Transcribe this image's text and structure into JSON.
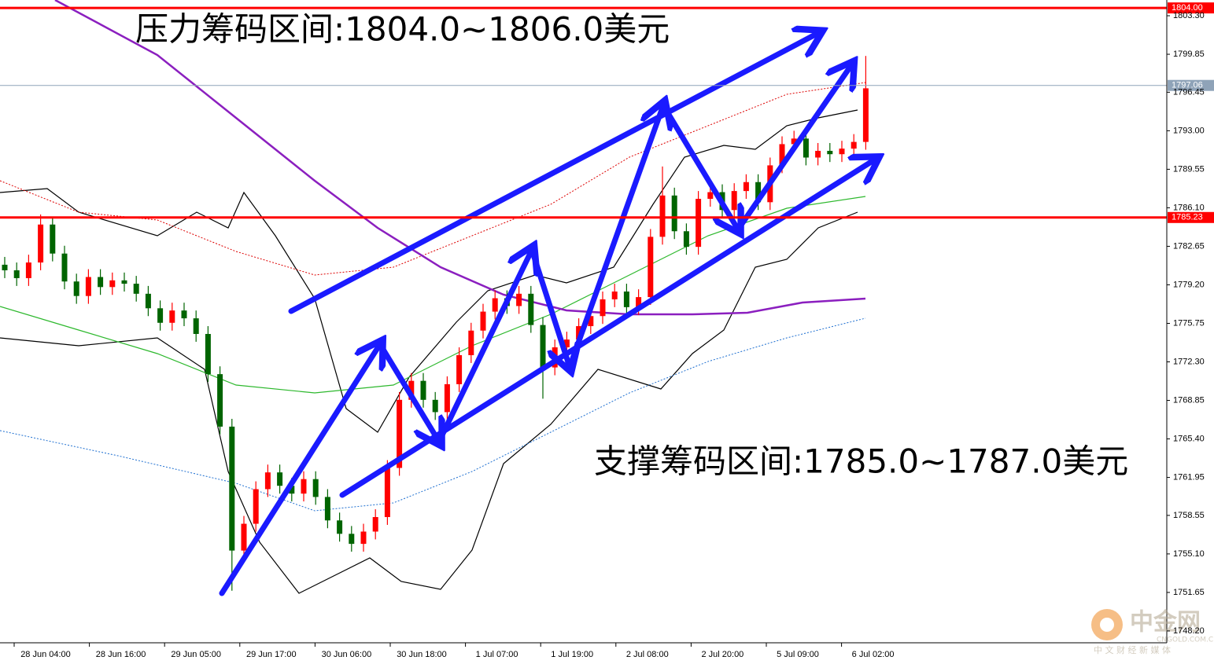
{
  "chart_data": {
    "type": "candlestick",
    "annotations": [
      "压力筹码区间:1804.0~1806.0美元",
      "支撑筹码区间:1785.0~1787.0美元"
    ],
    "categories": [
      "28 Jun 04:00",
      "28 Jun 16:00",
      "29 Jun 05:00",
      "29 Jun 17:00",
      "30 Jun 06:00",
      "30 Jun 18:00",
      "1 Jul 07:00",
      "1 Jul 19:00",
      "2 Jul 08:00",
      "2 Jul 20:00",
      "5 Jul 09:00",
      "6 Jul 02:00"
    ],
    "up_color": "#ff0000",
    "down_color": "#006400",
    "open": [
      1781.0,
      1780.5,
      1779.8,
      1781.2,
      1784.6,
      1782.0,
      1779.5,
      1778.2,
      1779.9,
      1779.0,
      1779.6,
      1779.3,
      1778.4,
      1777.1,
      1775.8,
      1776.9,
      1776.2,
      1774.8,
      1771.2,
      1766.5,
      1755.4,
      1757.8,
      1760.9,
      1762.4,
      1761.2,
      1760.5,
      1761.8,
      1760.2,
      1758.1,
      1756.9,
      1756.0,
      1757.1,
      1758.4,
      1762.8,
      1768.9,
      1770.6,
      1768.9,
      1767.8,
      1770.3,
      1772.9,
      1775.1,
      1776.8,
      1778.0,
      1777.3,
      1778.4,
      1775.6,
      1771.8,
      1773.6,
      1774.3,
      1775.5,
      1776.4,
      1777.9,
      1778.6,
      1777.2,
      1778.1,
      1783.5,
      1787.2,
      1784.0,
      1782.6,
      1786.9,
      1787.5,
      1785.9,
      1787.6,
      1788.4,
      1786.6,
      1789.9,
      1791.8,
      1792.3,
      1790.6,
      1791.2,
      1790.9,
      1791.4,
      1792.0
    ],
    "high": [
      1781.7,
      1781.2,
      1781.9,
      1785.5,
      1785.3,
      1782.7,
      1780.2,
      1780.6,
      1780.6,
      1780.3,
      1780.3,
      1780.0,
      1779.1,
      1777.8,
      1777.6,
      1777.6,
      1776.9,
      1775.5,
      1771.9,
      1767.2,
      1758.5,
      1761.6,
      1763.1,
      1763.1,
      1761.9,
      1762.5,
      1762.5,
      1760.9,
      1758.8,
      1757.6,
      1757.8,
      1759.1,
      1763.5,
      1769.6,
      1771.3,
      1771.3,
      1769.6,
      1771.0,
      1773.6,
      1775.8,
      1777.5,
      1778.7,
      1778.7,
      1779.1,
      1779.1,
      1776.3,
      1774.3,
      1775.0,
      1776.2,
      1777.1,
      1778.6,
      1779.3,
      1779.3,
      1778.8,
      1784.2,
      1789.8,
      1787.9,
      1784.7,
      1787.6,
      1788.2,
      1788.2,
      1788.3,
      1789.1,
      1789.1,
      1790.6,
      1792.5,
      1793.0,
      1793.0,
      1791.9,
      1791.9,
      1792.1,
      1792.7,
      1799.7
    ],
    "low": [
      1779.8,
      1779.1,
      1779.1,
      1780.5,
      1781.3,
      1778.8,
      1777.5,
      1777.5,
      1778.3,
      1778.3,
      1778.6,
      1777.7,
      1776.4,
      1775.1,
      1775.1,
      1775.5,
      1774.1,
      1770.5,
      1765.8,
      1751.8,
      1754.7,
      1757.1,
      1760.2,
      1760.5,
      1759.8,
      1759.8,
      1759.5,
      1757.4,
      1756.2,
      1755.3,
      1755.3,
      1756.4,
      1757.7,
      1762.1,
      1768.2,
      1768.2,
      1767.1,
      1767.1,
      1769.6,
      1772.2,
      1774.4,
      1776.1,
      1776.6,
      1776.6,
      1774.9,
      1769.0,
      1771.1,
      1772.9,
      1773.6,
      1774.8,
      1775.7,
      1777.2,
      1776.5,
      1776.5,
      1777.4,
      1782.8,
      1783.3,
      1781.9,
      1781.9,
      1786.2,
      1785.2,
      1785.2,
      1786.9,
      1785.9,
      1785.9,
      1789.2,
      1791.1,
      1789.9,
      1789.9,
      1790.2,
      1790.2,
      1790.7,
      1791.3
    ],
    "close": [
      1780.5,
      1779.8,
      1781.2,
      1784.6,
      1782.0,
      1779.5,
      1778.2,
      1779.9,
      1779.0,
      1779.6,
      1779.3,
      1778.4,
      1777.1,
      1775.8,
      1776.9,
      1776.2,
      1774.8,
      1771.2,
      1766.5,
      1755.4,
      1757.8,
      1760.9,
      1762.4,
      1761.2,
      1760.5,
      1761.8,
      1760.2,
      1758.1,
      1756.9,
      1756.0,
      1757.1,
      1758.4,
      1762.8,
      1768.9,
      1770.6,
      1768.9,
      1767.8,
      1770.3,
      1772.9,
      1775.1,
      1776.8,
      1778.0,
      1777.3,
      1778.4,
      1775.6,
      1771.8,
      1773.6,
      1774.3,
      1775.5,
      1776.4,
      1777.9,
      1778.6,
      1777.2,
      1778.1,
      1783.5,
      1787.2,
      1784.0,
      1782.6,
      1786.9,
      1787.5,
      1785.9,
      1787.6,
      1788.4,
      1786.6,
      1789.9,
      1791.8,
      1792.3,
      1790.6,
      1791.2,
      1790.9,
      1791.4,
      1792.0,
      1796.8
    ],
    "ylim": [
      1747.14,
      1804.71
    ],
    "yticks": [
      {
        "value": 1803.3,
        "label": "1803.30"
      },
      {
        "value": 1799.85,
        "label": "1799.85"
      },
      {
        "value": 1796.45,
        "label": "1796.45"
      },
      {
        "value": 1793,
        "label": "1793.00"
      },
      {
        "value": 1789.55,
        "label": "1789.55"
      },
      {
        "value": 1786.1,
        "label": "1786.10"
      },
      {
        "value": 1782.65,
        "label": "1782.65"
      },
      {
        "value": 1779.2,
        "label": "1779.20"
      },
      {
        "value": 1775.75,
        "label": "1775.75"
      },
      {
        "value": 1772.3,
        "label": "1772.30"
      },
      {
        "value": 1768.85,
        "label": "1768.85"
      },
      {
        "value": 1765.4,
        "label": "1765.40"
      },
      {
        "value": 1761.95,
        "label": "1761.95"
      },
      {
        "value": 1758.55,
        "label": "1758.55"
      },
      {
        "value": 1755.1,
        "label": "1755.10"
      },
      {
        "value": 1751.65,
        "label": "1751.65"
      },
      {
        "value": 1748.2,
        "label": "1748.20"
      }
    ],
    "levels": [
      {
        "value": 1804,
        "label": "1804.00",
        "color": "#ff0000"
      },
      {
        "value": 1797.06,
        "label": "1797.06",
        "color": "#8fa3b8"
      },
      {
        "value": 1785.23,
        "label": "1785.23",
        "color": "#ff0000"
      }
    ]
  },
  "watermark": {
    "brand": "中金网",
    "site": "CNGOLD.COM.CN",
    "slogan": "中 文 财 经 新 媒 体"
  }
}
